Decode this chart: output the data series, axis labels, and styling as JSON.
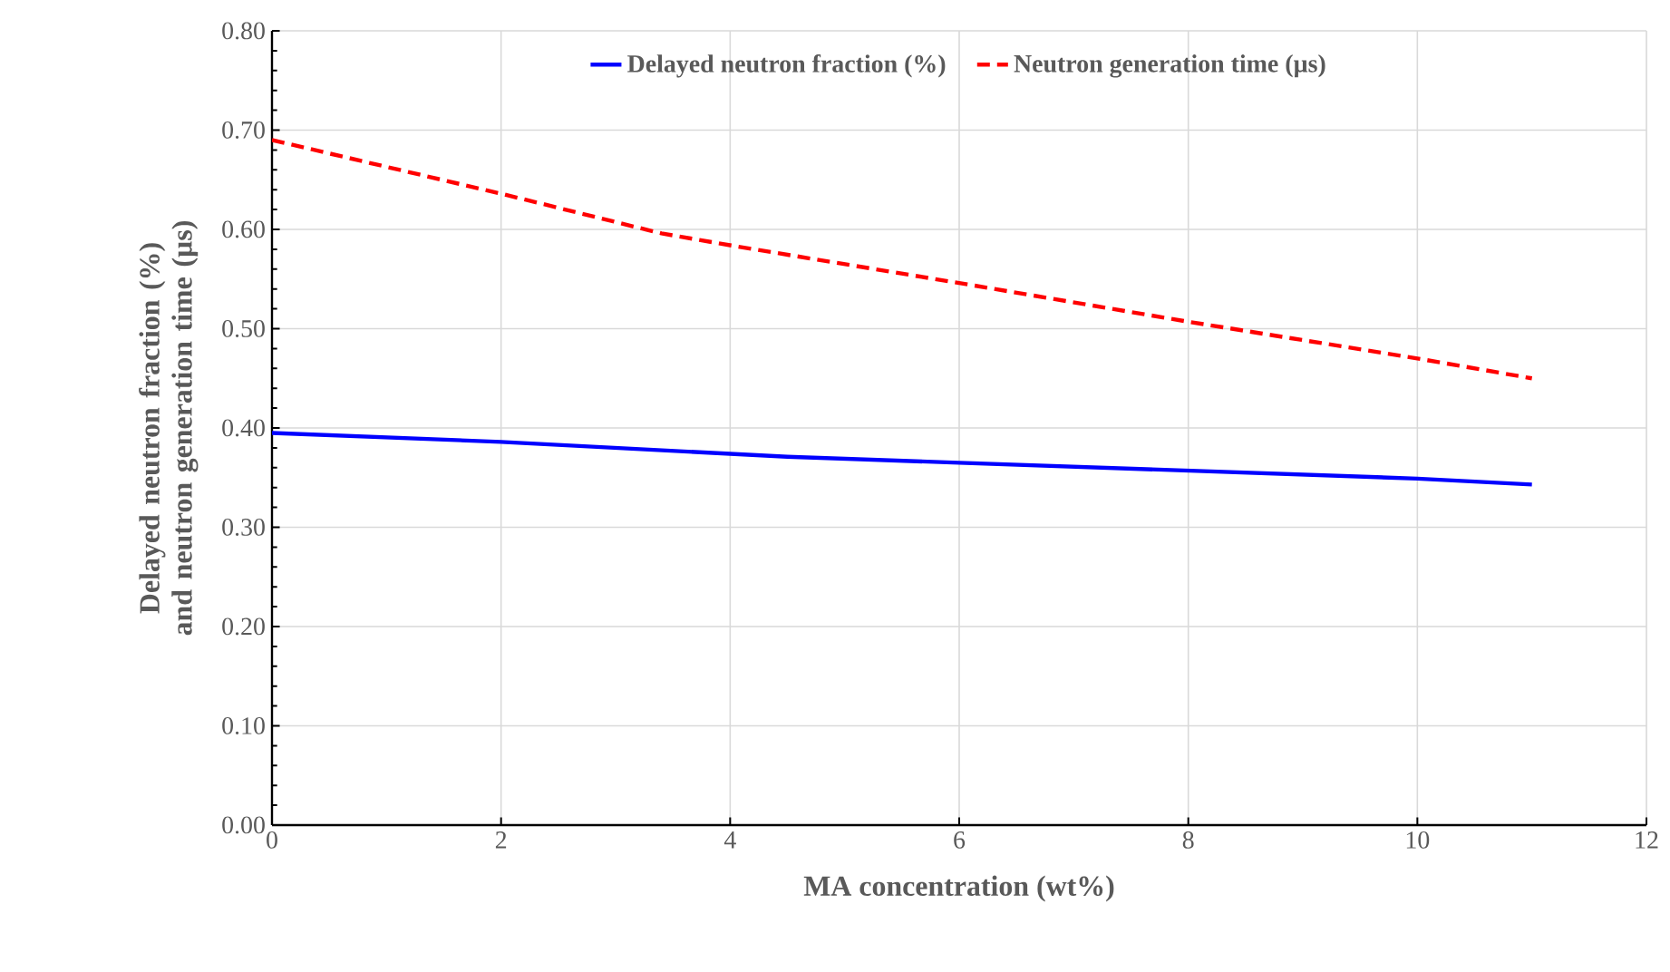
{
  "chart_data": {
    "type": "line",
    "xlabel": "MA concentration (wt%)",
    "ylabel": "Delayed neutron fraction (%) and neutron generation time (µs)",
    "series": [
      {
        "name": "Delayed neutron fraction (%)",
        "color": "#0000ff",
        "line_style": "solid",
        "x": [
          0,
          2,
          4.5,
          6,
          8,
          10,
          11
        ],
        "values": [
          0.395,
          0.386,
          0.371,
          0.365,
          0.357,
          0.349,
          0.343
        ]
      },
      {
        "name": "Neutron generation time (µs)",
        "color": "#ff0000",
        "line_style": "dashed",
        "x": [
          0,
          2,
          3.4,
          4,
          6,
          8,
          10,
          11
        ],
        "values": [
          0.69,
          0.636,
          0.596,
          0.584,
          0.546,
          0.507,
          0.47,
          0.45
        ]
      }
    ],
    "xlim": [
      0,
      12
    ],
    "ylim": [
      0,
      0.8
    ],
    "xticks": [
      0,
      2,
      4,
      6,
      8,
      10,
      12
    ],
    "yticks": [
      {
        "value": 0,
        "label": "0.00"
      },
      {
        "value": 0.1,
        "label": "0.10"
      },
      {
        "value": 0.2,
        "label": "0.20"
      },
      {
        "value": 0.3,
        "label": "0.30"
      },
      {
        "value": 0.4,
        "label": "0.40"
      },
      {
        "value": 0.5,
        "label": "0.50"
      },
      {
        "value": 0.6,
        "label": "0.60"
      },
      {
        "value": 0.7,
        "label": "0.70"
      },
      {
        "value": 0.8,
        "label": "0.80"
      }
    ],
    "grid": true,
    "legend": "top",
    "marker": "none"
  }
}
